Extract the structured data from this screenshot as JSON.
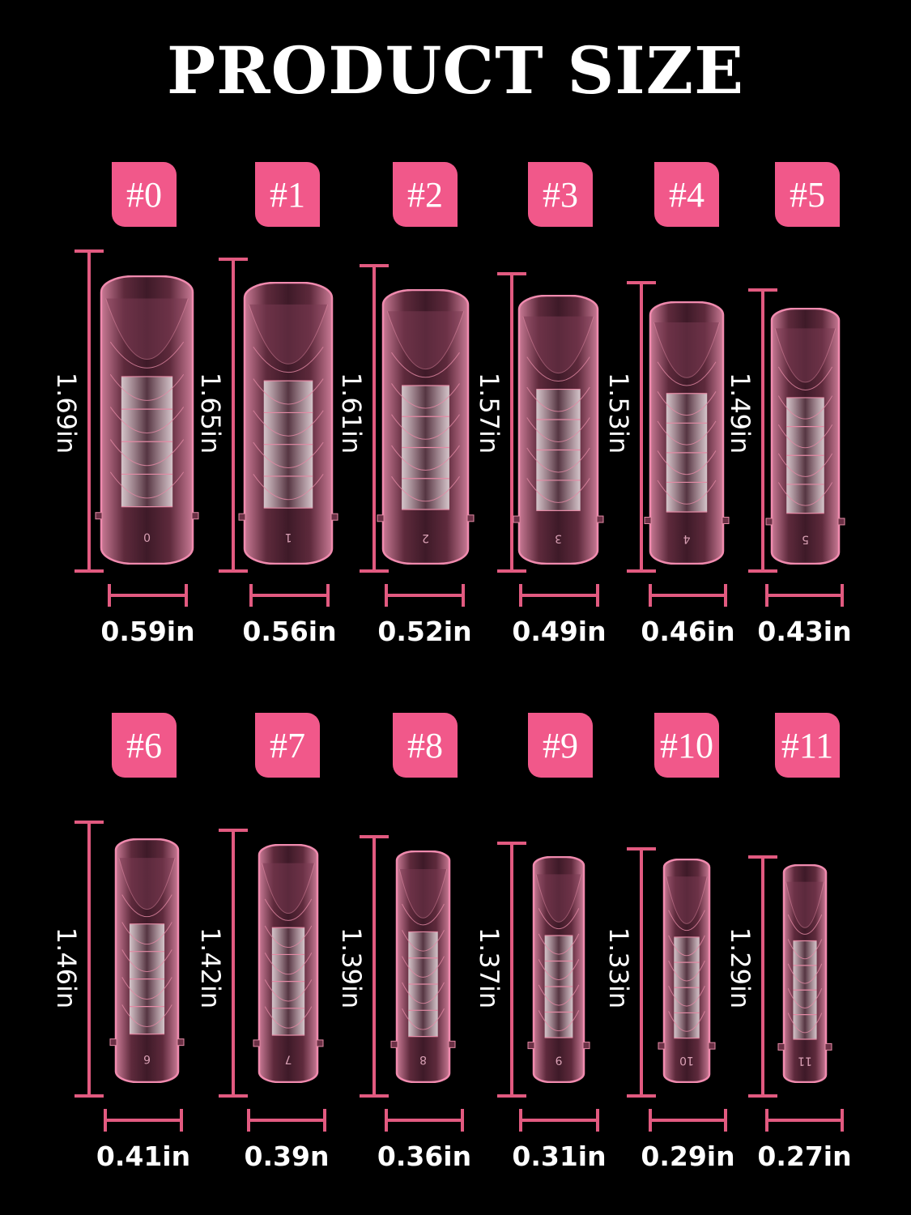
{
  "title": "PRODUCT SIZE",
  "colors": {
    "background": "#000000",
    "accent": "#f1588a",
    "dimension_line": "#e25a80",
    "nail": "#7a3a52"
  },
  "sizes": [
    {
      "label": "#0",
      "length": "1.69in",
      "width": "0.59in",
      "mark": "0"
    },
    {
      "label": "#1",
      "length": "1.65in",
      "width": "0.56in",
      "mark": "1"
    },
    {
      "label": "#2",
      "length": "1.61in",
      "width": "0.52in",
      "mark": "2"
    },
    {
      "label": "#3",
      "length": "1.57in",
      "width": "0.49in",
      "mark": "3"
    },
    {
      "label": "#4",
      "length": "1.53in",
      "width": "0.46in",
      "mark": "4"
    },
    {
      "label": "#5",
      "length": "1.49in",
      "width": "0.43in",
      "mark": "5"
    },
    {
      "label": "#6",
      "length": "1.46in",
      "width": "0.41in",
      "mark": "6"
    },
    {
      "label": "#7",
      "length": "1.42in",
      "width": "0.39n",
      "mark": "7"
    },
    {
      "label": "#8",
      "length": "1.39in",
      "width": "0.36in",
      "mark": "8"
    },
    {
      "label": "#9",
      "length": "1.37in",
      "width": "0.31in",
      "mark": "9"
    },
    {
      "label": "#10",
      "length": "1.33in",
      "width": "0.29in",
      "mark": "10"
    },
    {
      "label": "#11",
      "length": "1.29in",
      "width": "0.27in",
      "mark": "11"
    }
  ]
}
